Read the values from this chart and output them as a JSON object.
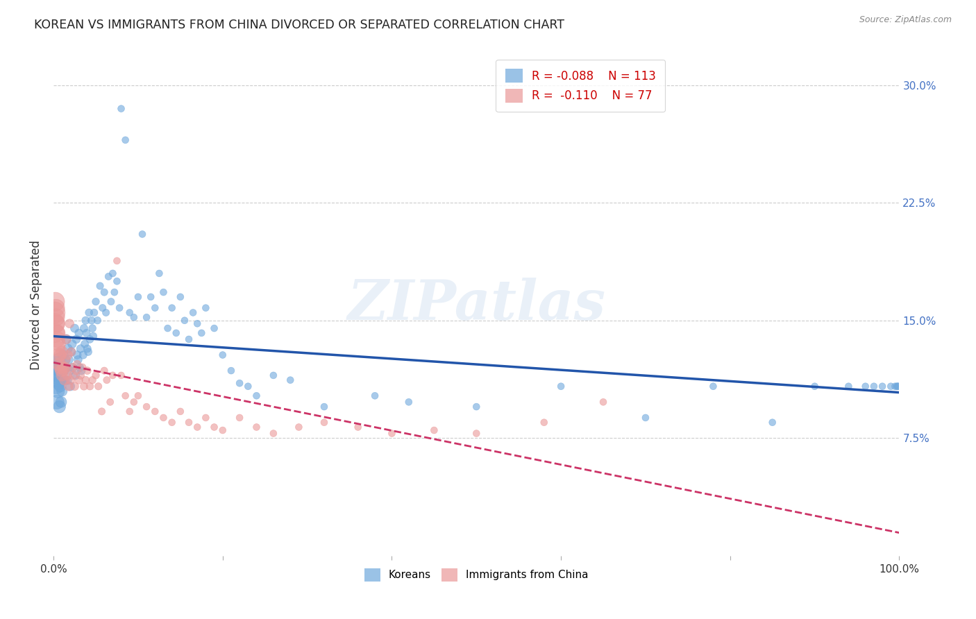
{
  "title": "KOREAN VS IMMIGRANTS FROM CHINA DIVORCED OR SEPARATED CORRELATION CHART",
  "source": "Source: ZipAtlas.com",
  "ylabel": "Divorced or Separated",
  "watermark": "ZIPatlas",
  "legend_blue_R": "-0.088",
  "legend_blue_N": "113",
  "legend_pink_R": "-0.110",
  "legend_pink_N": "77",
  "blue_color": "#6fa8dc",
  "pink_color": "#ea9999",
  "blue_line_color": "#2255aa",
  "pink_line_color": "#cc3366",
  "blue_scatter_x": [
    0.001,
    0.002,
    0.002,
    0.003,
    0.003,
    0.004,
    0.004,
    0.005,
    0.005,
    0.006,
    0.006,
    0.007,
    0.007,
    0.008,
    0.008,
    0.009,
    0.01,
    0.01,
    0.011,
    0.012,
    0.013,
    0.014,
    0.015,
    0.015,
    0.016,
    0.017,
    0.018,
    0.019,
    0.02,
    0.021,
    0.022,
    0.023,
    0.025,
    0.026,
    0.027,
    0.028,
    0.029,
    0.03,
    0.031,
    0.032,
    0.033,
    0.035,
    0.036,
    0.037,
    0.038,
    0.039,
    0.04,
    0.041,
    0.042,
    0.043,
    0.045,
    0.046,
    0.047,
    0.048,
    0.05,
    0.052,
    0.055,
    0.058,
    0.06,
    0.062,
    0.065,
    0.068,
    0.07,
    0.072,
    0.075,
    0.078,
    0.08,
    0.085,
    0.09,
    0.095,
    0.1,
    0.105,
    0.11,
    0.115,
    0.12,
    0.125,
    0.13,
    0.135,
    0.14,
    0.145,
    0.15,
    0.155,
    0.16,
    0.165,
    0.17,
    0.175,
    0.18,
    0.19,
    0.2,
    0.21,
    0.22,
    0.23,
    0.24,
    0.26,
    0.28,
    0.32,
    0.38,
    0.42,
    0.5,
    0.6,
    0.7,
    0.78,
    0.85,
    0.9,
    0.94,
    0.96,
    0.97,
    0.98,
    0.99,
    0.995,
    0.997,
    0.998,
    0.999
  ],
  "blue_scatter_y": [
    0.118,
    0.122,
    0.115,
    0.12,
    0.108,
    0.112,
    0.098,
    0.115,
    0.105,
    0.11,
    0.125,
    0.095,
    0.118,
    0.108,
    0.122,
    0.098,
    0.112,
    0.105,
    0.128,
    0.118,
    0.112,
    0.125,
    0.12,
    0.138,
    0.112,
    0.132,
    0.125,
    0.118,
    0.108,
    0.13,
    0.135,
    0.12,
    0.145,
    0.115,
    0.138,
    0.128,
    0.125,
    0.142,
    0.12,
    0.132,
    0.118,
    0.128,
    0.145,
    0.135,
    0.15,
    0.142,
    0.132,
    0.13,
    0.155,
    0.138,
    0.15,
    0.145,
    0.14,
    0.155,
    0.162,
    0.15,
    0.172,
    0.158,
    0.168,
    0.155,
    0.178,
    0.162,
    0.18,
    0.168,
    0.175,
    0.158,
    0.285,
    0.265,
    0.155,
    0.152,
    0.165,
    0.205,
    0.152,
    0.165,
    0.158,
    0.18,
    0.168,
    0.145,
    0.158,
    0.142,
    0.165,
    0.15,
    0.138,
    0.155,
    0.148,
    0.142,
    0.158,
    0.145,
    0.128,
    0.118,
    0.11,
    0.108,
    0.102,
    0.115,
    0.112,
    0.095,
    0.102,
    0.098,
    0.095,
    0.108,
    0.088,
    0.108,
    0.085,
    0.108,
    0.108,
    0.108,
    0.108,
    0.108,
    0.108,
    0.108,
    0.108,
    0.108,
    0.108
  ],
  "blue_scatter_size": [
    400,
    300,
    300,
    250,
    250,
    220,
    220,
    200,
    200,
    180,
    180,
    160,
    160,
    140,
    140,
    130,
    120,
    120,
    110,
    105,
    100,
    98,
    95,
    95,
    90,
    88,
    85,
    85,
    82,
    80,
    80,
    78,
    75,
    74,
    73,
    72,
    71,
    70,
    70,
    70,
    68,
    67,
    66,
    65,
    65,
    64,
    63,
    62,
    62,
    61,
    60,
    60,
    59,
    58,
    57,
    56,
    55,
    55,
    55,
    54,
    53,
    53,
    52,
    52,
    51,
    51,
    50,
    50,
    50,
    50,
    50,
    50,
    50,
    50,
    50,
    50,
    50,
    50,
    50,
    50,
    50,
    50,
    50,
    50,
    50,
    50,
    50,
    50,
    50,
    50,
    50,
    50,
    50,
    50,
    50,
    50,
    50,
    50,
    50,
    50,
    50,
    50,
    50,
    50,
    50,
    50,
    50,
    50,
    50,
    50,
    50,
    50,
    50
  ],
  "pink_scatter_x": [
    0.001,
    0.001,
    0.002,
    0.002,
    0.003,
    0.003,
    0.004,
    0.004,
    0.005,
    0.005,
    0.006,
    0.006,
    0.007,
    0.008,
    0.008,
    0.009,
    0.01,
    0.01,
    0.011,
    0.012,
    0.013,
    0.014,
    0.015,
    0.015,
    0.016,
    0.017,
    0.018,
    0.019,
    0.02,
    0.021,
    0.022,
    0.023,
    0.025,
    0.027,
    0.028,
    0.03,
    0.032,
    0.034,
    0.036,
    0.038,
    0.04,
    0.043,
    0.046,
    0.05,
    0.053,
    0.057,
    0.06,
    0.063,
    0.067,
    0.07,
    0.075,
    0.08,
    0.085,
    0.09,
    0.095,
    0.1,
    0.11,
    0.12,
    0.13,
    0.14,
    0.15,
    0.16,
    0.17,
    0.18,
    0.19,
    0.2,
    0.22,
    0.24,
    0.26,
    0.29,
    0.32,
    0.36,
    0.4,
    0.45,
    0.5,
    0.58,
    0.65
  ],
  "pink_scatter_y": [
    0.155,
    0.148,
    0.142,
    0.162,
    0.152,
    0.158,
    0.138,
    0.148,
    0.132,
    0.142,
    0.128,
    0.135,
    0.122,
    0.12,
    0.128,
    0.118,
    0.13,
    0.115,
    0.12,
    0.118,
    0.112,
    0.125,
    0.12,
    0.138,
    0.115,
    0.128,
    0.108,
    0.148,
    0.112,
    0.13,
    0.12,
    0.115,
    0.108,
    0.118,
    0.122,
    0.112,
    0.115,
    0.12,
    0.108,
    0.112,
    0.118,
    0.108,
    0.112,
    0.115,
    0.108,
    0.092,
    0.118,
    0.112,
    0.098,
    0.115,
    0.188,
    0.115,
    0.102,
    0.092,
    0.098,
    0.102,
    0.095,
    0.092,
    0.088,
    0.085,
    0.092,
    0.085,
    0.082,
    0.088,
    0.082,
    0.08,
    0.088,
    0.082,
    0.078,
    0.082,
    0.085,
    0.082,
    0.078,
    0.08,
    0.078,
    0.085,
    0.098
  ],
  "pink_scatter_size": [
    500,
    450,
    380,
    380,
    320,
    320,
    280,
    280,
    240,
    240,
    210,
    210,
    190,
    170,
    170,
    155,
    140,
    140,
    128,
    118,
    110,
    105,
    100,
    100,
    95,
    92,
    88,
    85,
    82,
    80,
    78,
    76,
    73,
    71,
    70,
    68,
    66,
    65,
    63,
    62,
    61,
    59,
    58,
    57,
    56,
    55,
    54,
    53,
    52,
    52,
    51,
    50,
    50,
    50,
    50,
    50,
    50,
    50,
    50,
    50,
    50,
    50,
    50,
    50,
    50,
    50,
    50,
    50,
    50,
    50,
    50,
    50,
    50,
    50,
    50,
    50,
    50
  ]
}
